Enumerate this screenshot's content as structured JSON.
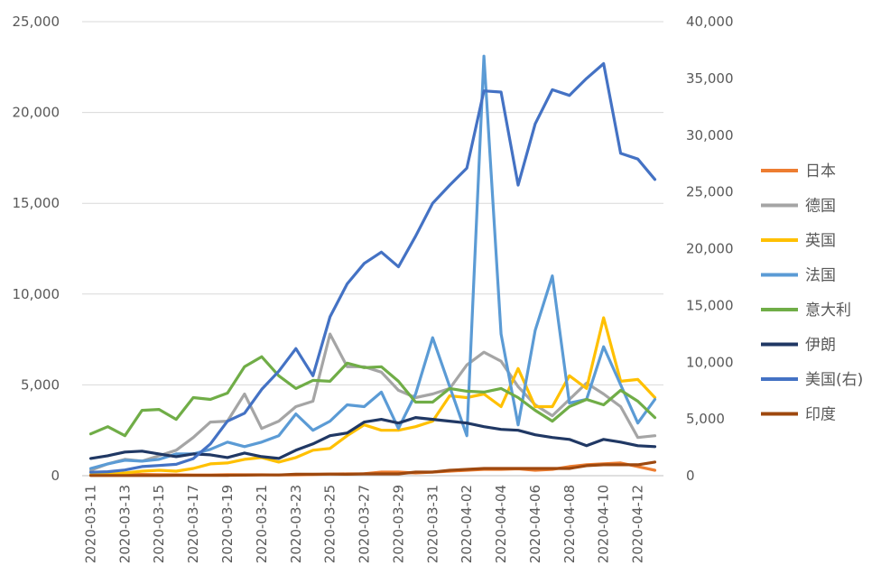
{
  "chart_data": {
    "type": "line",
    "title": "",
    "xlabel": "",
    "ylabel": "",
    "y2label": "",
    "ylim": [
      0,
      25000
    ],
    "y2lim": [
      0,
      40000
    ],
    "yticks": [
      "0",
      "5,000",
      "10,000",
      "15,000",
      "20,000",
      "25,000"
    ],
    "y2ticks": [
      "0",
      "5,000",
      "10,000",
      "15,000",
      "20,000",
      "25,000",
      "30,000",
      "35,000",
      "40,000"
    ],
    "legend_position": "right",
    "categories": [
      "2020-03-11",
      "2020-03-12",
      "2020-03-13",
      "2020-03-14",
      "2020-03-15",
      "2020-03-16",
      "2020-03-17",
      "2020-03-18",
      "2020-03-19",
      "2020-03-20",
      "2020-03-21",
      "2020-03-22",
      "2020-03-23",
      "2020-03-24",
      "2020-03-25",
      "2020-03-26",
      "2020-03-27",
      "2020-03-28",
      "2020-03-29",
      "2020-03-30",
      "2020-03-31",
      "2020-04-01",
      "2020-04-02",
      "2020-04-03",
      "2020-04-04",
      "2020-04-05",
      "2020-04-06",
      "2020-04-07",
      "2020-04-08",
      "2020-04-09",
      "2020-04-10",
      "2020-04-11",
      "2020-04-12",
      "2020-04-13"
    ],
    "tick_labels": [
      "2020-03-11",
      "2020-03-13",
      "2020-03-15",
      "2020-03-17",
      "2020-03-19",
      "2020-03-21",
      "2020-03-23",
      "2020-03-25",
      "2020-03-27",
      "2020-03-29",
      "2020-03-31",
      "2020-04-02",
      "2020-04-04",
      "2020-04-06",
      "2020-04-08",
      "2020-04-10",
      "2020-04-12"
    ],
    "series": [
      {
        "name": "日本",
        "color": "#ED7D31",
        "axis": "left",
        "values": [
          50,
          60,
          60,
          70,
          60,
          50,
          40,
          40,
          60,
          50,
          50,
          40,
          40,
          60,
          90,
          100,
          110,
          200,
          200,
          150,
          200,
          250,
          300,
          350,
          350,
          380,
          300,
          350,
          500,
          600,
          650,
          700,
          500,
          300
        ]
      },
      {
        "name": "德国",
        "color": "#A5A5A5",
        "axis": "left",
        "values": [
          300,
          650,
          900,
          800,
          1100,
          1400,
          2100,
          2950,
          3000,
          4500,
          2600,
          3000,
          3800,
          4100,
          7800,
          6000,
          6000,
          5700,
          4700,
          4300,
          4500,
          4800,
          6100,
          6800,
          6300,
          4900,
          3900,
          3300,
          4200,
          5100,
          4500,
          3800,
          2100,
          2200
        ]
      },
      {
        "name": "英国",
        "color": "#FFC000",
        "axis": "left",
        "values": [
          50,
          80,
          150,
          250,
          300,
          250,
          400,
          650,
          700,
          900,
          1000,
          750,
          1000,
          1400,
          1500,
          2200,
          2800,
          2500,
          2500,
          2700,
          3000,
          4400,
          4300,
          4500,
          3800,
          5900,
          3800,
          3800,
          5500,
          4800,
          8700,
          5200,
          5300,
          4300
        ]
      },
      {
        "name": "法国",
        "color": "#5B9BD5",
        "axis": "left",
        "values": [
          400,
          650,
          850,
          800,
          900,
          1200,
          1200,
          1450,
          1850,
          1600,
          1850,
          2200,
          3400,
          2500,
          3000,
          3900,
          3800,
          4600,
          2600,
          4500,
          7600,
          4900,
          2200,
          23100,
          7800,
          2800,
          8000,
          11000,
          4000,
          4200,
          7100,
          5000,
          2900,
          4200
        ]
      },
      {
        "name": "意大利",
        "color": "#70AD47",
        "axis": "left",
        "values": [
          2300,
          2700,
          2200,
          3600,
          3650,
          3100,
          4300,
          4200,
          4550,
          6000,
          6550,
          5500,
          4800,
          5250,
          5200,
          6200,
          5950,
          6000,
          5200,
          4050,
          4050,
          4800,
          4650,
          4600,
          4800,
          4300,
          3600,
          3000,
          3800,
          4200,
          3900,
          4700,
          4100,
          3200
        ]
      },
      {
        "name": "伊朗",
        "color": "#203864",
        "axis": "left",
        "values": [
          950,
          1100,
          1300,
          1350,
          1200,
          1050,
          1200,
          1150,
          1000,
          1250,
          1050,
          950,
          1400,
          1750,
          2200,
          2350,
          2950,
          3100,
          2900,
          3200,
          3100,
          3000,
          2900,
          2700,
          2550,
          2500,
          2250,
          2100,
          2000,
          1650,
          2000,
          1850,
          1650,
          1600
        ]
      },
      {
        "name": "美国(右)",
        "color": "#4472C4",
        "axis": "right",
        "values": [
          300,
          350,
          500,
          800,
          900,
          1000,
          1500,
          2800,
          4800,
          5500,
          7600,
          9200,
          11200,
          8800,
          14000,
          16900,
          18700,
          19700,
          18400,
          21100,
          24000,
          25600,
          27100,
          33900,
          33800,
          25600,
          31000,
          34000,
          33500,
          35000,
          36300,
          28400,
          27900,
          26100
        ]
      },
      {
        "name": "印度",
        "color": "#9E480E",
        "axis": "left",
        "values": [
          10,
          10,
          10,
          10,
          10,
          20,
          20,
          20,
          20,
          30,
          40,
          40,
          80,
          80,
          90,
          80,
          100,
          100,
          100,
          200,
          200,
          300,
          350,
          400,
          400,
          400,
          400,
          400,
          400,
          550,
          600,
          600,
          600,
          750
        ]
      }
    ]
  }
}
